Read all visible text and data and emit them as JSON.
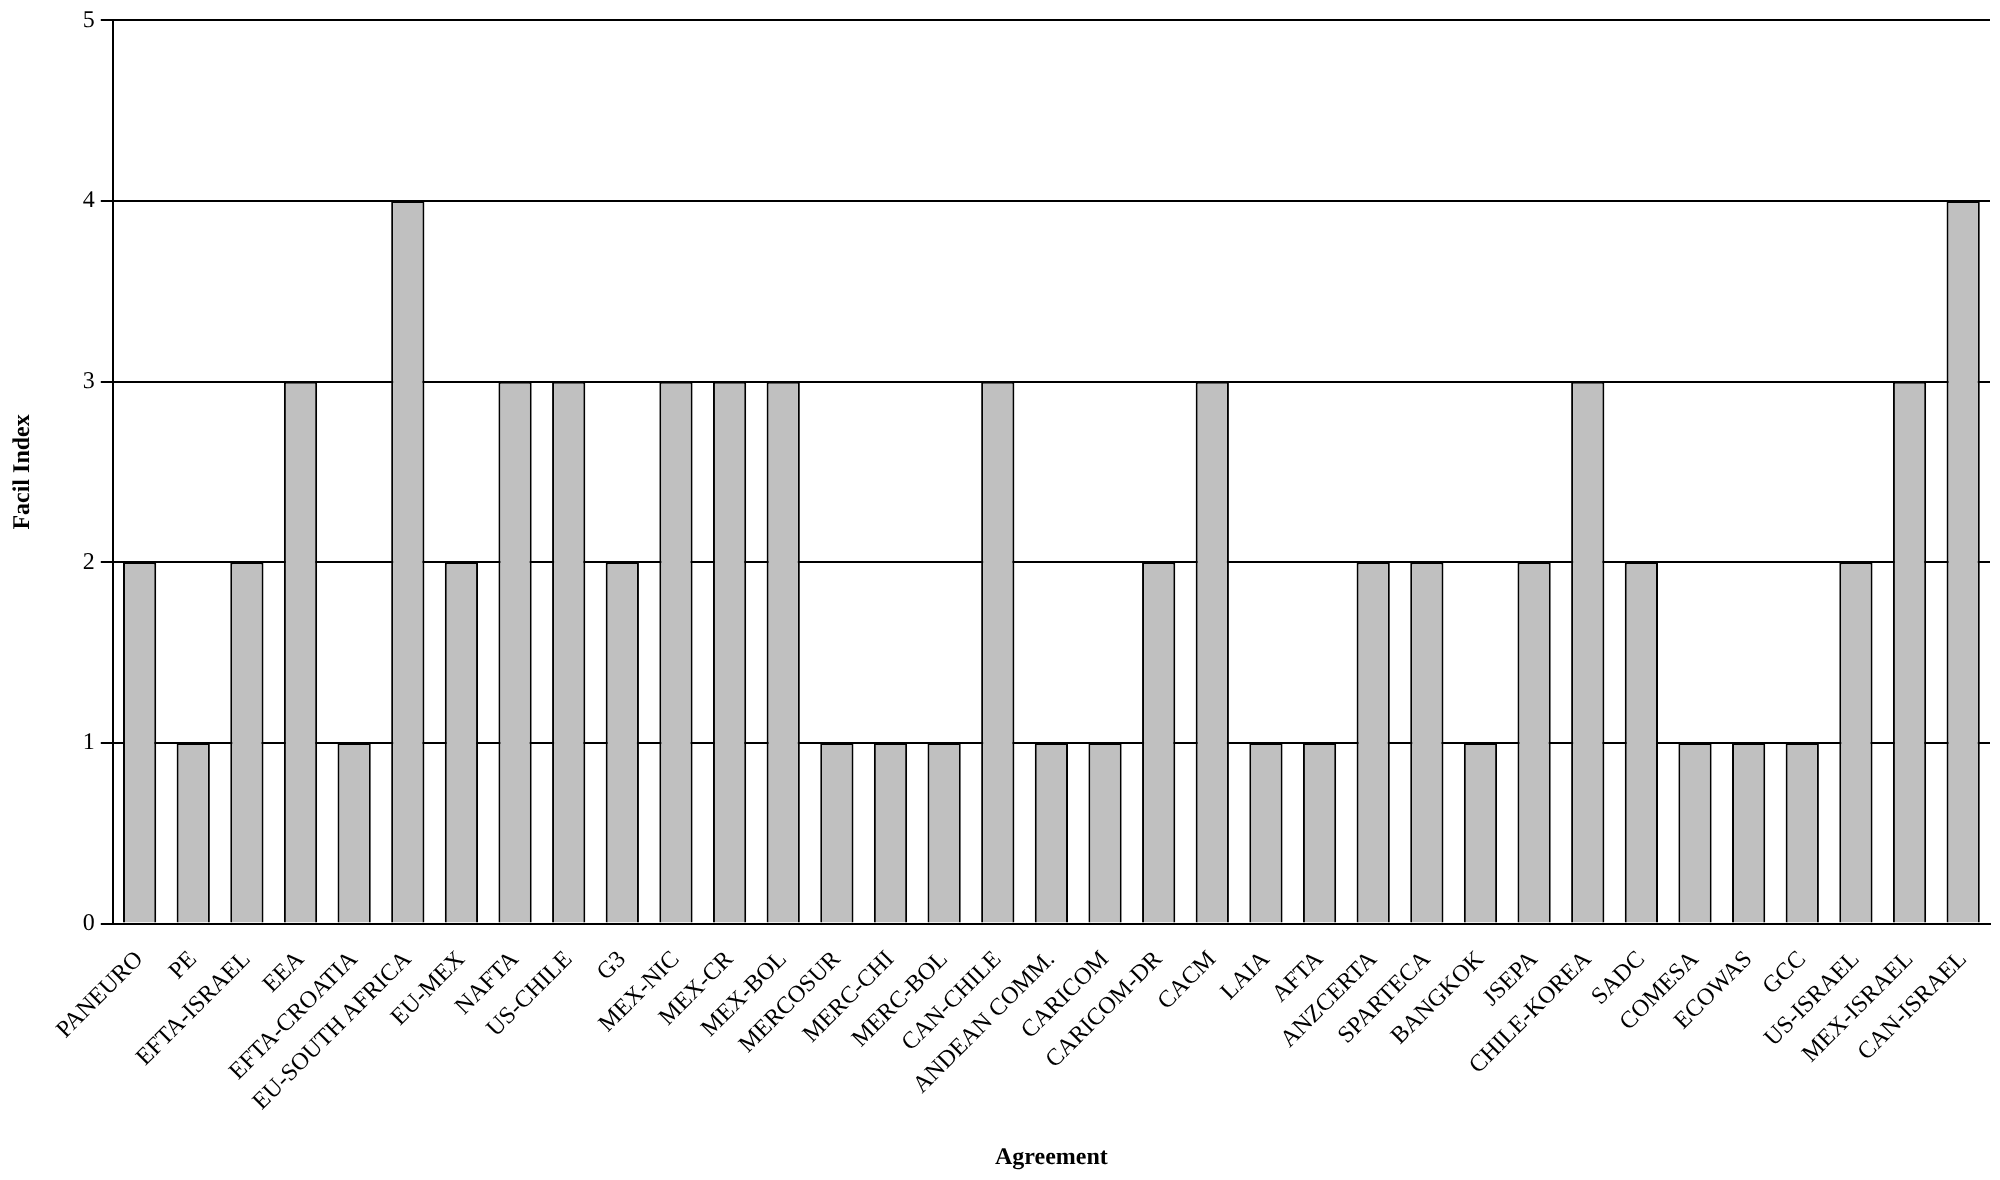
{
  "chart_data": {
    "type": "bar",
    "xlabel": "Agreement",
    "ylabel": "Facil Index",
    "categories": [
      "PANEURO",
      "PE",
      "EFTA-ISRAEL",
      "EEA",
      "EFTA-CROATIA",
      "EU-SOUTH AFRICA",
      "EU-MEX",
      "NAFTA",
      "US-CHILE",
      "G3",
      "MEX-NIC",
      "MEX-CR",
      "MEX-BOL",
      "MERCOSUR",
      "MERC-CHI",
      "MERC-BOL",
      "CAN-CHILE",
      "ANDEAN COMM.",
      "CARICOM",
      "CARICOM-DR",
      "CACM",
      "LAIA",
      "AFTA",
      "ANZCERTA",
      "SPARTECA",
      "BANGKOK",
      "JSEPA",
      "CHILE-KOREA",
      "SADC",
      "COMESA",
      "ECOWAS",
      "GCC",
      "US-ISRAEL",
      "MEX-ISRAEL",
      "CAN-ISRAEL"
    ],
    "values": [
      2,
      1,
      2,
      3,
      1,
      4,
      2,
      3,
      3,
      2,
      3,
      3,
      3,
      1,
      1,
      1,
      3,
      1,
      1,
      2,
      3,
      1,
      1,
      2,
      2,
      1,
      2,
      3,
      2,
      1,
      1,
      1,
      2,
      3,
      4
    ],
    "color": "#c0c0c0",
    "ylim": [
      0,
      5
    ],
    "yticks": [
      0,
      1,
      2,
      3,
      4,
      5
    ],
    "grid": "y",
    "legend": false
  }
}
